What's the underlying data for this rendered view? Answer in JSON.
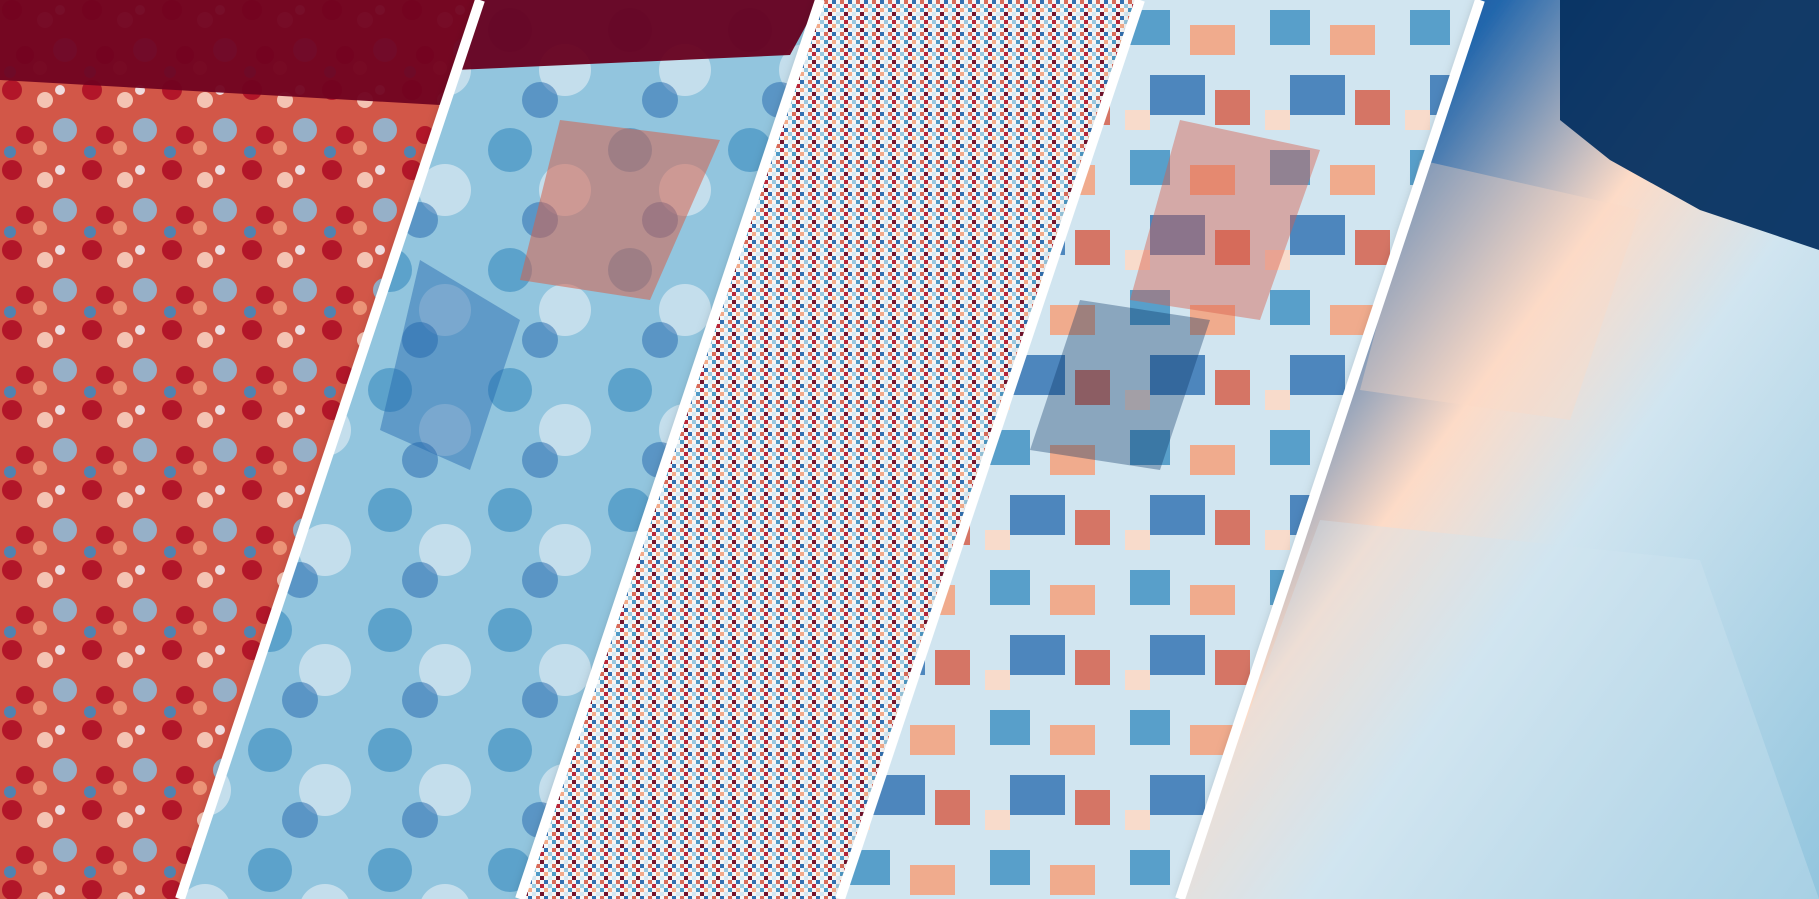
{
  "image": {
    "colormap": [
      "#67001f",
      "#b2182b",
      "#d6604d",
      "#f4a582",
      "#fddbc7",
      "#f7f7f7",
      "#d1e5f0",
      "#92c5de",
      "#4393c3",
      "#2166ac",
      "#053061"
    ],
    "panels": [
      {
        "name": "panel-1",
        "pattern": "fine-mottled",
        "dominant": "red",
        "edge_band": "dark-red-top"
      },
      {
        "name": "panel-2",
        "pattern": "smooth-gradient",
        "dominant": "blue",
        "edge_band": "dark-red-top"
      },
      {
        "name": "panel-3",
        "pattern": "high-frequency-noise",
        "dominant": "mixed",
        "edge_band": "none"
      },
      {
        "name": "panel-4",
        "pattern": "blocky-patches",
        "dominant": "mixed",
        "edge_band": "none"
      },
      {
        "name": "panel-5",
        "pattern": "large-smooth-blobs",
        "dominant": "blue",
        "edge_band": "dark-blue-top-right"
      }
    ]
  }
}
